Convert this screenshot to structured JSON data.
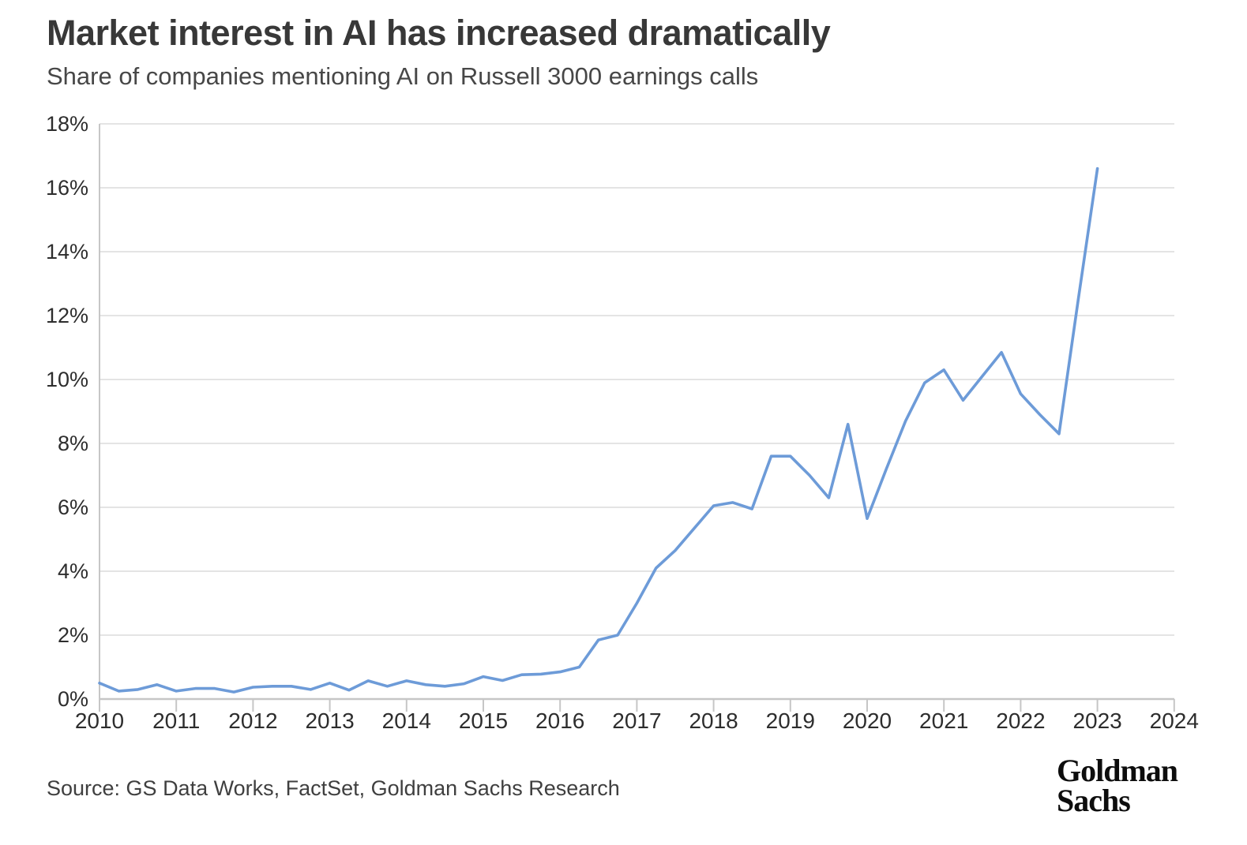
{
  "header": {
    "title": "Market interest in AI has increased dramatically",
    "subtitle": "Share of companies mentioning AI on Russell 3000 earnings calls"
  },
  "footer": {
    "source": "Source: GS Data Works, FactSet, Goldman Sachs Research",
    "logo_line1": "Goldman",
    "logo_line2": "Sachs"
  },
  "colors": {
    "line": "#6D9BD8",
    "grid": "#e4e4e4",
    "axis": "#c6c6c6",
    "tick": "#c6c6c6",
    "axis_label": "#2d2d2d"
  },
  "chart_data": {
    "type": "line",
    "title": "Market interest in AI has increased dramatically",
    "subtitle": "Share of companies mentioning AI on Russell 3000 earnings calls",
    "grid": "horizontal",
    "legend": "none",
    "x_axis": {
      "tick_labels": [
        "2010",
        "2011",
        "2012",
        "2013",
        "2014",
        "2015",
        "2016",
        "2017",
        "2018",
        "2019",
        "2020",
        "2021",
        "2022",
        "2023",
        "2024"
      ],
      "start_year": 2010,
      "frequency": "quarterly",
      "points_per_year": 4
    },
    "y_axis": {
      "tick_labels": [
        "0%",
        "2%",
        "4%",
        "6%",
        "8%",
        "10%",
        "12%",
        "14%",
        "16%",
        "18%"
      ],
      "min": 0,
      "max": 18,
      "step": 2,
      "unit": "%"
    },
    "series": [
      {
        "name": "Share of companies mentioning AI on Russell 3000 earnings calls",
        "color": "#6D9BD8",
        "start": "2010 Q1",
        "end": "2023 Q1",
        "values_pct": [
          0.5,
          0.25,
          0.3,
          0.45,
          0.25,
          0.33,
          0.33,
          0.22,
          0.37,
          0.4,
          0.4,
          0.3,
          0.5,
          0.28,
          0.57,
          0.4,
          0.57,
          0.45,
          0.4,
          0.48,
          0.7,
          0.58,
          0.76,
          0.78,
          0.85,
          1.0,
          1.85,
          2.0,
          3.0,
          4.1,
          4.65,
          5.35,
          6.05,
          6.15,
          5.95,
          7.6,
          7.6,
          7.0,
          6.3,
          8.6,
          5.65,
          7.2,
          8.7,
          9.9,
          10.3,
          9.35,
          10.1,
          10.85,
          9.55,
          8.9,
          8.3,
          12.5,
          16.6
        ]
      }
    ]
  }
}
